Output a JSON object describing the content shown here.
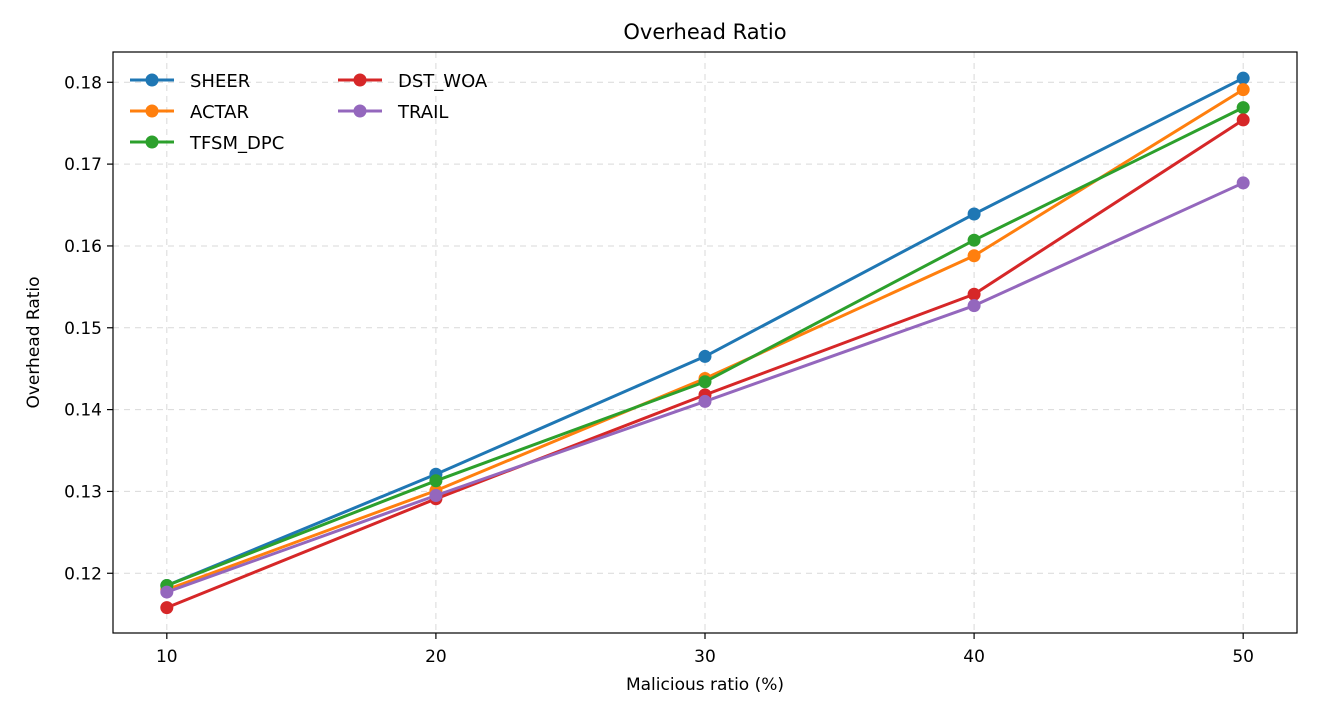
{
  "chart_data": {
    "type": "line",
    "title": "Overhead Ratio",
    "xlabel": "Malicious ratio (%)",
    "ylabel": "Overhead Ratio",
    "x": [
      10,
      20,
      30,
      40,
      50
    ],
    "xticks": [
      "10",
      "20",
      "30",
      "40",
      "50"
    ],
    "yticks": [
      "0.12",
      "0.13",
      "0.14",
      "0.15",
      "0.16",
      "0.17",
      "0.18"
    ],
    "xlim": [
      8,
      52
    ],
    "ylim": [
      0.1127,
      0.1837
    ],
    "grid": true,
    "legend_position": "top-left",
    "series": [
      {
        "name": "SHEER",
        "color": "#1f77b4",
        "values": [
          0.1185,
          0.1321,
          0.1465,
          0.1639,
          0.1805
        ]
      },
      {
        "name": "ACTAR",
        "color": "#ff7f0e",
        "values": [
          0.118,
          0.1301,
          0.1438,
          0.1588,
          0.1791
        ]
      },
      {
        "name": "TFSM_DPC",
        "color": "#2ca02c",
        "values": [
          0.1185,
          0.1313,
          0.1434,
          0.1607,
          0.1769
        ]
      },
      {
        "name": "DST_WOA",
        "color": "#d62728",
        "values": [
          0.1158,
          0.1291,
          0.1418,
          0.1541,
          0.1754
        ]
      },
      {
        "name": "TRAIL",
        "color": "#9467bd",
        "values": [
          0.1177,
          0.1295,
          0.141,
          0.1527,
          0.1677
        ]
      }
    ]
  }
}
